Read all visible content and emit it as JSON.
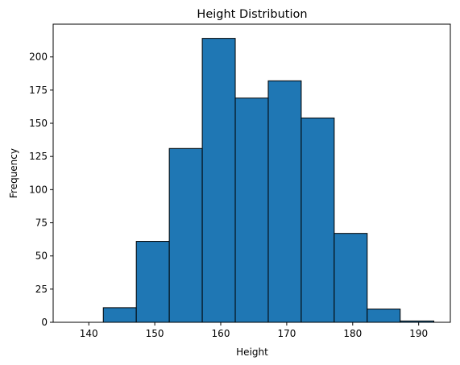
{
  "chart_data": {
    "type": "bar",
    "title": "Height Distribution",
    "xlabel": "Height",
    "ylabel": "Frequency",
    "bins": [
      {
        "x0": 137.1,
        "x1": 142.2,
        "value": 0
      },
      {
        "x0": 142.2,
        "x1": 147.2,
        "value": 11
      },
      {
        "x0": 147.2,
        "x1": 152.2,
        "value": 61
      },
      {
        "x0": 152.2,
        "x1": 157.2,
        "value": 131
      },
      {
        "x0": 157.2,
        "x1": 162.2,
        "value": 214
      },
      {
        "x0": 162.2,
        "x1": 167.2,
        "value": 169
      },
      {
        "x0": 167.2,
        "x1": 172.2,
        "value": 182
      },
      {
        "x0": 172.2,
        "x1": 177.2,
        "value": 154
      },
      {
        "x0": 177.2,
        "x1": 182.2,
        "value": 67
      },
      {
        "x0": 182.2,
        "x1": 187.2,
        "value": 10
      },
      {
        "x0": 187.2,
        "x1": 192.3,
        "value": 1
      }
    ],
    "xlim": [
      134.6,
      194.8
    ],
    "ylim": [
      0,
      224.7
    ],
    "xticks": [
      140,
      150,
      160,
      170,
      180,
      190
    ],
    "yticks": [
      0,
      25,
      50,
      75,
      100,
      125,
      150,
      175,
      200
    ],
    "grid": false,
    "bar_color": "#1f77b4",
    "edge_color": "#000000"
  }
}
